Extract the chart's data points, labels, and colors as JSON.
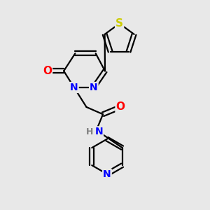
{
  "background_color": "#e8e8e8",
  "bond_color": "#000000",
  "atom_colors": {
    "N": "#0000ff",
    "O": "#ff0000",
    "S": "#cccc00",
    "H": "#808080",
    "C": "#000000"
  },
  "font_size_atoms": 9,
  "figsize": [
    3.0,
    3.0
  ],
  "dpi": 100
}
